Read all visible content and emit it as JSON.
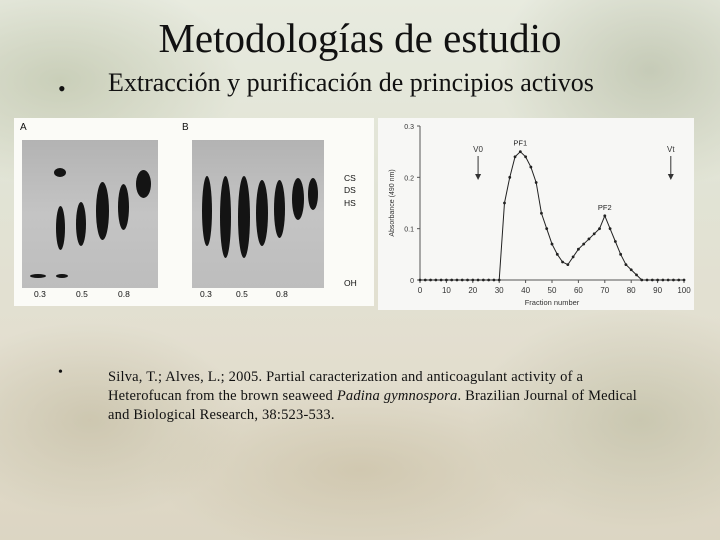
{
  "slide": {
    "title": "Metodologías de estudio",
    "bullet_char": "•",
    "point1": "Extracción y purificación de principios activos",
    "citation_pre": "Silva, T.; Alves, L.; 2005. Partial caracterization and anticoagulant activity of a Heterofucan from the brown seaweed ",
    "citation_species": "Padina gymnospora",
    "citation_post": ". Brazilian Journal of Medical and Biological Research, 38:523-533."
  },
  "electrophoresis": {
    "panel_a": "A",
    "panel_b": "B",
    "lanes_a": [
      "0.3",
      "0.5",
      "0.8"
    ],
    "lanes_b": [
      "0.3",
      "0.5",
      "0.8"
    ],
    "standards": [
      "CS",
      "DS",
      "HS",
      "OH"
    ]
  },
  "chart_data": {
    "type": "line",
    "xlabel": "Fraction number",
    "ylabel": "Absorbance (490 nm)",
    "xlim": [
      0,
      100
    ],
    "ylim": [
      0,
      0.3
    ],
    "xticks": [
      0,
      10,
      20,
      30,
      40,
      50,
      60,
      70,
      80,
      90,
      100
    ],
    "yticks": [
      0,
      0.1,
      0.2,
      0.3
    ],
    "ytick_labels": [
      "0",
      "0.1",
      "0.2",
      "0.3"
    ],
    "grid": false,
    "markers": [
      {
        "label": "V0",
        "x": 22
      },
      {
        "label": "Vt",
        "x": 95
      }
    ],
    "peak_labels": [
      {
        "label": "PF1",
        "x": 38,
        "y": 0.25
      },
      {
        "label": "PF2",
        "x": 70,
        "y": 0.125
      }
    ],
    "series": [
      {
        "x": [
          0,
          2,
          4,
          6,
          8,
          10,
          12,
          14,
          16,
          18,
          20,
          22,
          24,
          26,
          28,
          30,
          32,
          34,
          36,
          38,
          40,
          42,
          44,
          46,
          48,
          50,
          52,
          54,
          56,
          58,
          60,
          62,
          64,
          66,
          68,
          70,
          72,
          74,
          76,
          78,
          80,
          82,
          84,
          86,
          88,
          90,
          92,
          94,
          96,
          98,
          100
        ],
        "y": [
          0,
          0,
          0,
          0,
          0,
          0,
          0,
          0,
          0,
          0,
          0,
          0,
          0,
          0,
          0,
          0,
          0.15,
          0.2,
          0.24,
          0.25,
          0.24,
          0.22,
          0.19,
          0.13,
          0.1,
          0.07,
          0.05,
          0.035,
          0.03,
          0.045,
          0.06,
          0.07,
          0.08,
          0.09,
          0.1,
          0.125,
          0.1,
          0.075,
          0.05,
          0.03,
          0.02,
          0.01,
          0,
          0,
          0,
          0,
          0,
          0,
          0,
          0,
          0
        ]
      }
    ]
  }
}
